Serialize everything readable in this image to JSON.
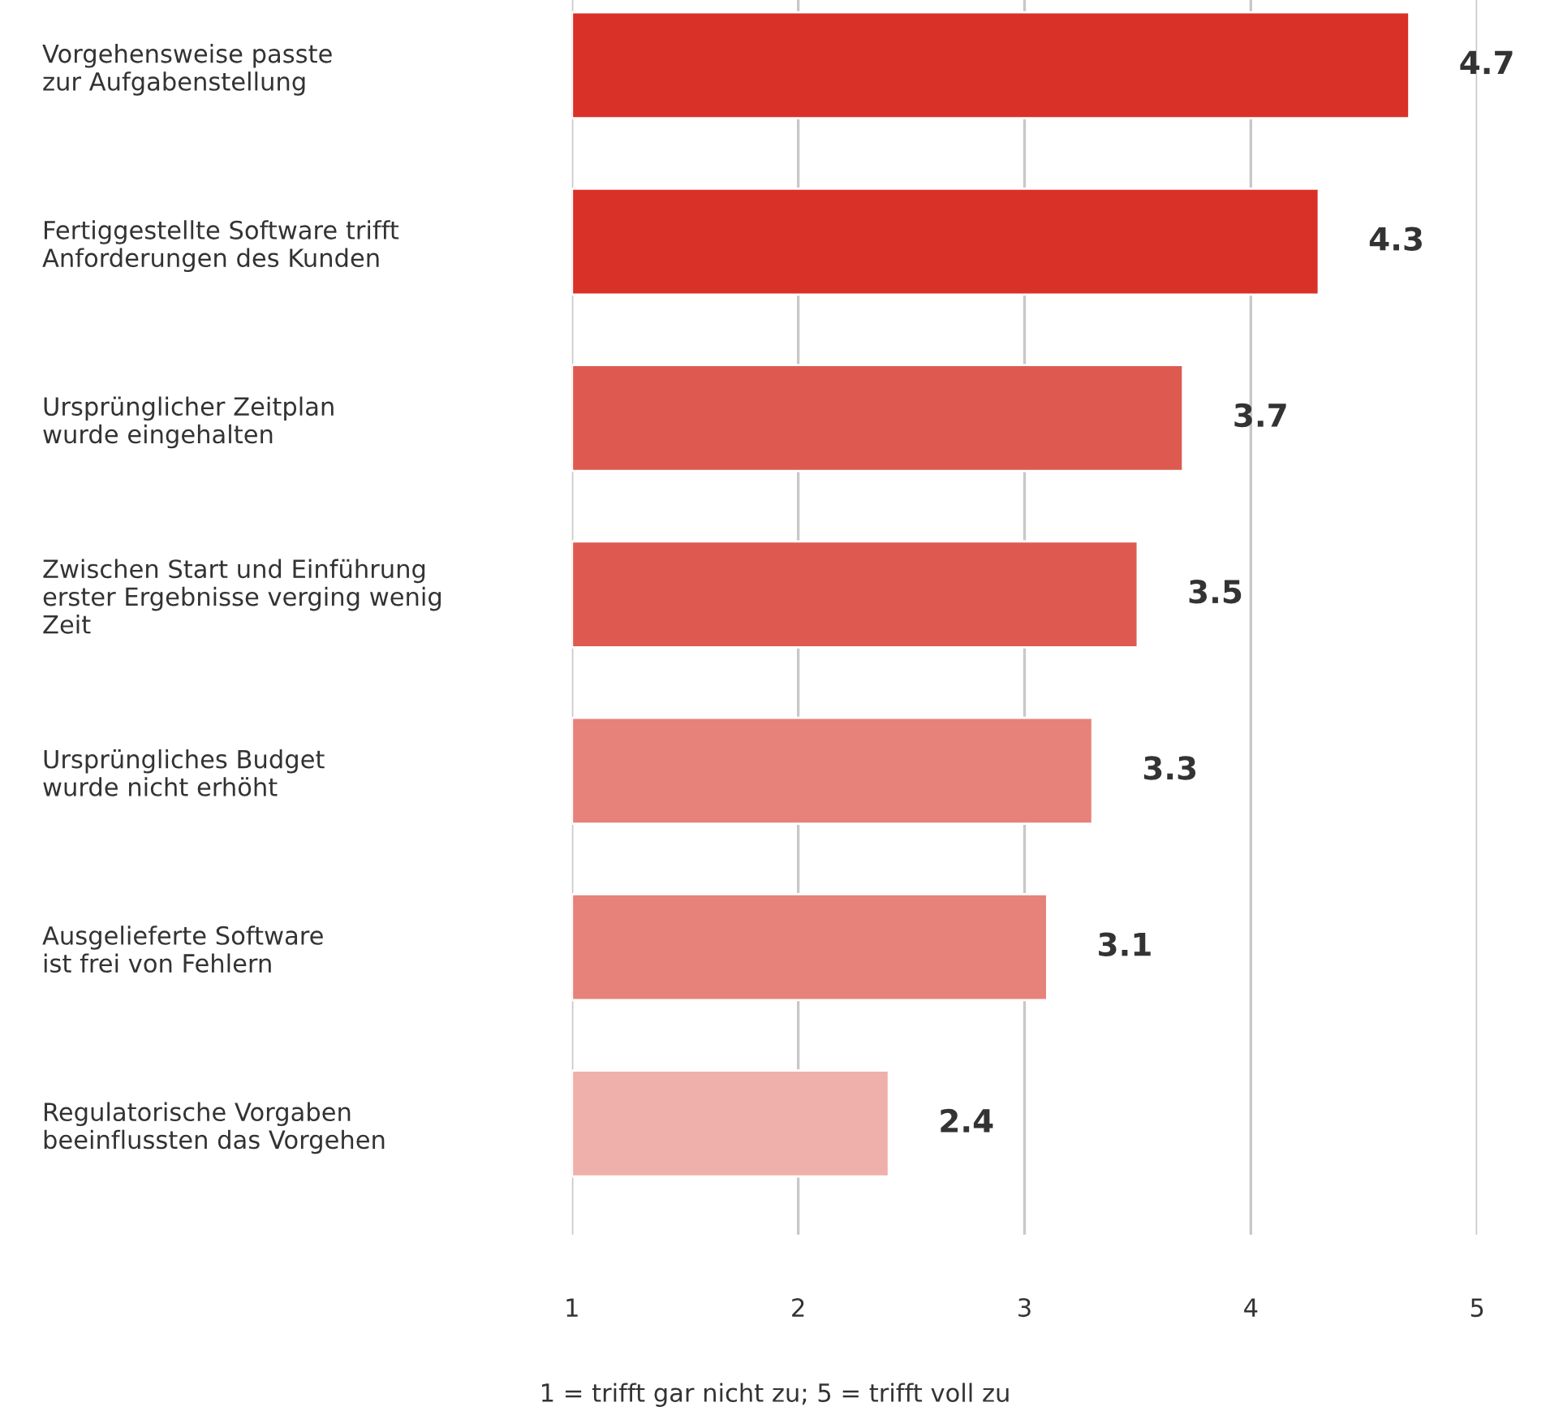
{
  "chart_data": {
    "type": "bar",
    "orientation": "horizontal",
    "categories": [
      "Vorgehensweise passte\nzur Aufgabenstellung",
      "Fertiggestellte Software trifft\nAnforderungen des Kunden",
      "Ursprünglicher Zeitplan\nwurde eingehalten",
      "Zwischen Start und Einführung\nerster Ergebnisse verging wenig\nZeit",
      "Ursprüngliches Budget\nwurde nicht erhöht",
      "Ausgelieferte Software\nist frei von Fehlern",
      "Regulatorische Vorgaben\nbeeinflussten das Vorgehen"
    ],
    "values": [
      4.7,
      4.3,
      3.7,
      3.5,
      3.3,
      3.1,
      2.4
    ],
    "colors": [
      "#d93127",
      "#d93127",
      "#de5a50",
      "#de5a50",
      "#e6827a",
      "#e6827a",
      "#efb0ab"
    ],
    "xlim": [
      1,
      5
    ],
    "xticks": [
      1,
      2,
      3,
      4,
      5
    ],
    "grid": "x",
    "data_labels": true,
    "annotations": [
      "1 = trifft gar nicht zu; 5 = trifft voll zu"
    ]
  }
}
